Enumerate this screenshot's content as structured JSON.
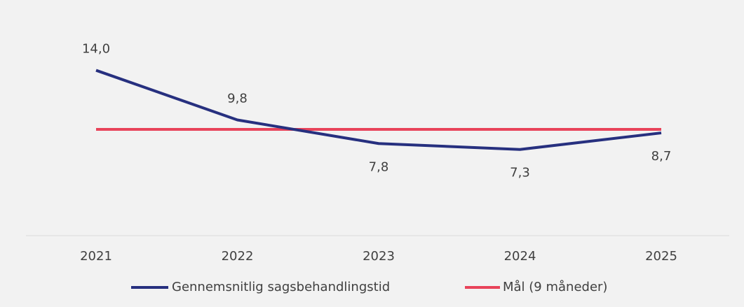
{
  "chart_data": {
    "type": "line",
    "categories": [
      "2021",
      "2022",
      "2023",
      "2024",
      "2025"
    ],
    "series": [
      {
        "name": "Gennemsnitlig sagsbehandlingstid",
        "color": "#27307f",
        "values": [
          14.0,
          9.8,
          7.8,
          7.3,
          8.7
        ],
        "value_labels": [
          "14,0",
          "9,8",
          "7,8",
          "7,3",
          "8,7"
        ]
      },
      {
        "name": "Mål (9 måneder)",
        "color": "#e8435a",
        "values": [
          9,
          9,
          9,
          9,
          9
        ]
      }
    ],
    "ylim": [
      0,
      18
    ],
    "legend": "bottom"
  }
}
